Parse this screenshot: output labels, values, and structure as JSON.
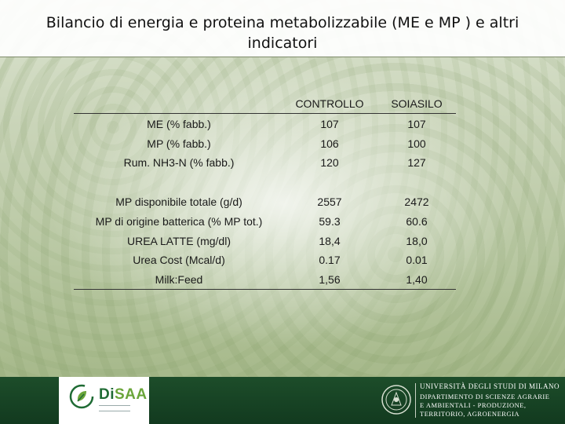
{
  "title": "Bilancio di energia e proteina metabolizzabile (ME e MP ) e altri indicatori",
  "table": {
    "columns": [
      "CONTROLLO",
      "SOIASILO"
    ],
    "rows": [
      {
        "label": "ME (% fabb.)",
        "controllo": "107",
        "soiasilo": "107"
      },
      {
        "label": "MP (% fabb.)",
        "controllo": "106",
        "soiasilo": "100"
      },
      {
        "label": "Rum. NH3-N (% fabb.)",
        "controllo": "120",
        "soiasilo": "127"
      },
      {
        "label": "MP disponibile totale (g/d)",
        "controllo": "2557",
        "soiasilo": "2472"
      },
      {
        "label": "MP di origine batterica (% MP tot.)",
        "controllo": "59.3",
        "soiasilo": "60.6"
      },
      {
        "label": "UREA LATTE (mg/dl)",
        "controllo": "18,4",
        "soiasilo": "18,0"
      },
      {
        "label": "Urea Cost (Mcal/d)",
        "controllo": "0.17",
        "soiasilo": "0.01"
      },
      {
        "label": "Milk:Feed",
        "controllo": "1,56",
        "soiasilo": "1,40"
      }
    ]
  },
  "footer": {
    "dept_logo_di": "Di",
    "dept_logo_saa": "SAA",
    "university": "UNIVERSITÀ DEGLI STUDI DI MILANO",
    "department_lines": [
      "DIPARTIMENTO DI SCIENZE AGRARIE",
      "E AMBIENTALI - PRODUZIONE,",
      "TERRITORIO, AGROENERGIA"
    ]
  },
  "colors": {
    "footer_bg": "#1d4d2a",
    "logo_green": "#1f6b34",
    "logo_accent": "#6aa53a"
  }
}
